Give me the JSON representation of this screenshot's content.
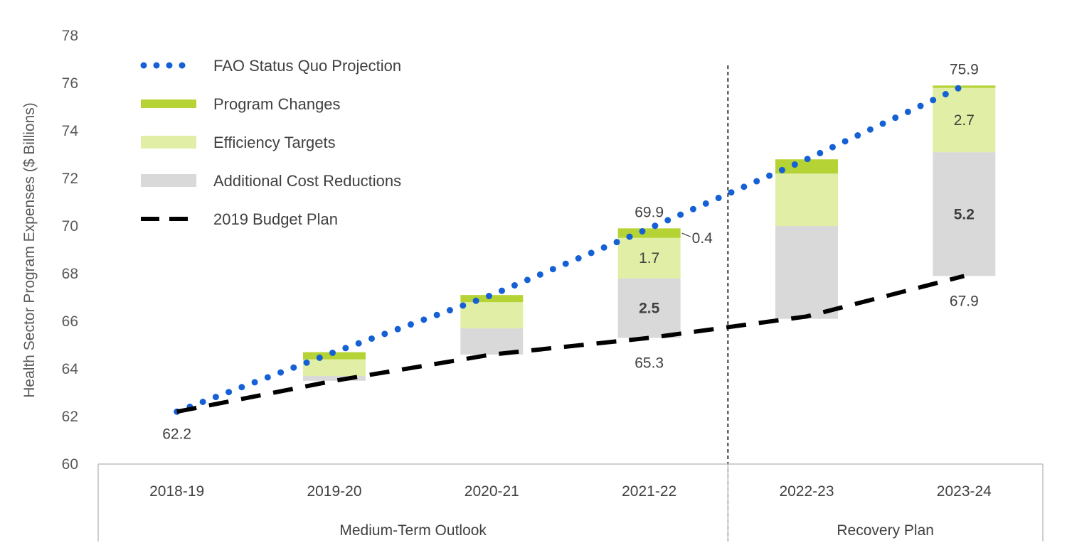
{
  "chart_data": {
    "type": "bar",
    "ylabel": "Health Sector Program Expenses ($ Billions)",
    "ylim": [
      60,
      78
    ],
    "yticks": [
      60,
      62,
      64,
      66,
      68,
      70,
      72,
      74,
      76,
      78
    ],
    "categories": [
      "2018-19",
      "2019-20",
      "2020-21",
      "2021-22",
      "2022-23",
      "2023-24"
    ],
    "groups": [
      {
        "label": "Medium-Term Outlook",
        "categories": [
          "2018-19",
          "2019-20",
          "2020-21",
          "2021-22"
        ]
      },
      {
        "label": "Recovery Plan",
        "categories": [
          "2022-23",
          "2023-24"
        ]
      }
    ],
    "series": [
      {
        "name": "FAO Status Quo Projection",
        "type": "line",
        "style": "dotted",
        "color": "#1560d4",
        "values": [
          62.2,
          64.7,
          67.1,
          69.9,
          72.8,
          75.9
        ]
      },
      {
        "name": "Program Changes",
        "type": "bar-segment",
        "color": "#b5d334",
        "values": [
          null,
          0.3,
          0.3,
          0.4,
          0.6,
          0.1
        ]
      },
      {
        "name": "Efficiency Targets",
        "type": "bar-segment",
        "color": "#e0efa5",
        "values": [
          null,
          0.7,
          1.1,
          1.7,
          2.2,
          2.7
        ]
      },
      {
        "name": "Additional Cost Reductions",
        "type": "bar-segment",
        "color": "#d9d9d9",
        "values": [
          null,
          0.2,
          1.1,
          2.5,
          3.9,
          5.2
        ]
      },
      {
        "name": "2019 Budget Plan",
        "type": "line",
        "style": "dashed",
        "color": "#000000",
        "values": [
          62.2,
          63.5,
          64.6,
          65.3,
          66.2,
          67.9
        ]
      }
    ],
    "data_labels": [
      {
        "category": "2018-19",
        "text": "62.2",
        "series": "2019 Budget Plan"
      },
      {
        "category": "2021-22",
        "text": "69.9",
        "series": "FAO Status Quo Projection"
      },
      {
        "category": "2021-22",
        "text": "0.4",
        "series": "Program Changes"
      },
      {
        "category": "2021-22",
        "text": "1.7",
        "series": "Efficiency Targets"
      },
      {
        "category": "2021-22",
        "text": "2.5",
        "series": "Additional Cost Reductions",
        "bold": true
      },
      {
        "category": "2021-22",
        "text": "65.3",
        "series": "2019 Budget Plan"
      },
      {
        "category": "2023-24",
        "text": "75.9",
        "series": "FAO Status Quo Projection"
      },
      {
        "category": "2023-24",
        "text": "2.7",
        "series": "Efficiency Targets"
      },
      {
        "category": "2023-24",
        "text": "5.2",
        "series": "Additional Cost Reductions",
        "bold": true
      },
      {
        "category": "2023-24",
        "text": "67.9",
        "series": "2019 Budget Plan"
      }
    ],
    "legend_position": "top-left",
    "divider_between": [
      "2021-22",
      "2022-23"
    ],
    "grid": false
  }
}
